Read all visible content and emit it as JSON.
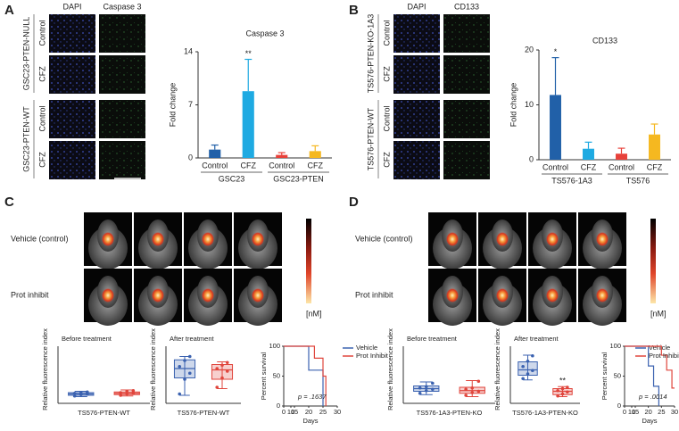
{
  "panels": [
    {
      "letter": "A",
      "columns": [
        "DAPI",
        "Caspase 3"
      ],
      "groups": [
        {
          "name": "GSC23-PTEN-NULL",
          "rows": [
            "Control",
            "CFZ"
          ]
        },
        {
          "name": "GSC23-PTEN-WT",
          "rows": [
            "Control",
            "CFZ"
          ]
        }
      ]
    },
    {
      "letter": "B",
      "columns": [
        "DAPI",
        "CD133"
      ],
      "groups": [
        {
          "name": "TS576-PTEN-KO-1A3",
          "rows": [
            "Control",
            "CFZ"
          ]
        },
        {
          "name": "TS576-PTEN-WT",
          "rows": [
            "Control",
            "CFZ"
          ]
        }
      ]
    },
    {
      "letter": "C",
      "rows": [
        "Vehicle (control)",
        "Prot inhibit"
      ],
      "unit": "[nM]"
    },
    {
      "letter": "D",
      "rows": [
        "Vehicle (control)",
        "Prot inhibit"
      ],
      "unit": "[nM]"
    }
  ],
  "chart_data": [
    {
      "type": "bar",
      "title": "Caspase 3",
      "y_label": "Fold change",
      "categories": [
        "Control",
        "CFZ",
        "Control",
        "CFZ"
      ],
      "category_groups": [
        "GSC23",
        "GSC23-PTEN"
      ],
      "values": [
        1.1,
        8.8,
        0.4,
        0.9
      ],
      "errors": [
        0.6,
        4.2,
        0.3,
        0.7
      ],
      "colors": [
        "#2160a8",
        "#1eaae2",
        "#e8413a",
        "#f5b820"
      ],
      "significance": [
        null,
        "**",
        null,
        null
      ],
      "ylim": [
        0,
        14
      ],
      "yticks": [
        0,
        7,
        14
      ]
    },
    {
      "type": "bar",
      "title": "CD133",
      "y_label": "Fold change",
      "categories": [
        "Control",
        "CFZ",
        "Control",
        "CFZ"
      ],
      "category_groups": [
        "TS576-1A3",
        "TS576"
      ],
      "values": [
        11.8,
        2.0,
        1.1,
        4.6
      ],
      "errors": [
        6.8,
        1.2,
        1.0,
        1.9
      ],
      "colors": [
        "#2160a8",
        "#1eaae2",
        "#e8413a",
        "#f5b820"
      ],
      "significance": [
        "*",
        null,
        null,
        null
      ],
      "ylim": [
        0,
        20
      ],
      "yticks": [
        0,
        10,
        20
      ]
    },
    {
      "type": "box",
      "title": "Before treatment",
      "y_label": "Relative fluorescence index",
      "x_label": "TS576-PTEN-WT",
      "ylim": [
        0,
        80
      ],
      "boxes": [
        {
          "color": "#3b62b0",
          "min": 10,
          "q1": 12,
          "median": 14,
          "q3": 16,
          "max": 18,
          "points": [
            11,
            13,
            14,
            15,
            16,
            17
          ]
        },
        {
          "color": "#e0453c",
          "min": 11,
          "q1": 13,
          "median": 15,
          "q3": 17,
          "max": 20,
          "points": [
            12,
            14,
            15,
            16,
            18,
            19
          ]
        }
      ],
      "significance": [
        null,
        null
      ]
    },
    {
      "type": "box",
      "title": "After treatment",
      "y_label": "Relative fluorescence index",
      "x_label": "TS576-PTEN-WT",
      "ylim": [
        0,
        80
      ],
      "boxes": [
        {
          "color": "#3b62b0",
          "min": 12,
          "q1": 38,
          "median": 52,
          "q3": 65,
          "max": 70,
          "points": [
            14,
            36,
            45,
            55,
            64,
            70
          ]
        },
        {
          "color": "#e0453c",
          "min": 22,
          "q1": 36,
          "median": 50,
          "q3": 58,
          "max": 62,
          "points": [
            24,
            38,
            48,
            52,
            57,
            61
          ]
        }
      ],
      "significance": [
        null,
        null
      ]
    },
    {
      "type": "line",
      "y_label": "Percent survival",
      "x_label": "Days",
      "annotation": "p = .1637",
      "legend": "outside right",
      "xlim": [
        0,
        30
      ],
      "xticks": [
        0,
        10,
        15,
        20,
        25,
        30
      ],
      "ylim": [
        0,
        100
      ],
      "yticks": [
        0,
        50,
        100
      ],
      "series": [
        {
          "name": "Vehicle",
          "color": "#3b62b0",
          "x": [
            0,
            20,
            20,
            25,
            25
          ],
          "values": [
            100,
            100,
            60,
            60,
            0
          ]
        },
        {
          "name": "Prot Inhibit",
          "color": "#e0453c",
          "x": [
            0,
            22,
            22,
            25,
            25,
            26,
            26
          ],
          "values": [
            100,
            100,
            80,
            80,
            50,
            50,
            0
          ]
        }
      ]
    },
    {
      "type": "box",
      "title": "Before treatment",
      "y_label": "Relative fluorescence index",
      "x_label": "TS576-1A3-PTEN-KO",
      "ylim": [
        0,
        80
      ],
      "boxes": [
        {
          "color": "#3b62b0",
          "min": 13,
          "q1": 18,
          "median": 22,
          "q3": 26,
          "max": 32,
          "points": [
            15,
            19,
            21,
            23,
            25,
            30
          ]
        },
        {
          "color": "#e0453c",
          "min": 10,
          "q1": 15,
          "median": 19,
          "q3": 24,
          "max": 34,
          "points": [
            12,
            16,
            18,
            21,
            23,
            33
          ]
        }
      ],
      "significance": [
        null,
        null
      ]
    },
    {
      "type": "box",
      "title": "After treatment",
      "y_label": "Relative fluorescence index",
      "x_label": "TS576-1A3-PTEN-KO",
      "ylim": [
        0,
        80
      ],
      "boxes": [
        {
          "color": "#3b62b0",
          "min": 35,
          "q1": 42,
          "median": 50,
          "q3": 62,
          "max": 72,
          "points": [
            37,
            44,
            49,
            55,
            63,
            71
          ]
        },
        {
          "color": "#e0453c",
          "min": 10,
          "q1": 13,
          "median": 18,
          "q3": 22,
          "max": 25,
          "points": [
            11,
            14,
            17,
            19,
            22,
            24
          ]
        }
      ],
      "significance": [
        null,
        "**"
      ]
    },
    {
      "type": "line",
      "y_label": "Percent survival",
      "x_label": "Days",
      "annotation": "p = .0014",
      "legend": "upper right",
      "xlim": [
        0,
        30
      ],
      "xticks": [
        0,
        10,
        15,
        20,
        25,
        30
      ],
      "ylim": [
        0,
        100
      ],
      "yticks": [
        0,
        50,
        100
      ],
      "series": [
        {
          "name": "Vehicle",
          "color": "#3b62b0",
          "x": [
            0,
            20,
            20,
            22,
            22,
            24,
            24
          ],
          "values": [
            100,
            100,
            67,
            67,
            33,
            33,
            0
          ]
        },
        {
          "name": "Prot Inhibit",
          "color": "#e0453c",
          "x": [
            0,
            25,
            25,
            27,
            27,
            29,
            29,
            30
          ],
          "values": [
            100,
            100,
            85,
            85,
            60,
            60,
            30,
            30
          ]
        }
      ]
    }
  ]
}
